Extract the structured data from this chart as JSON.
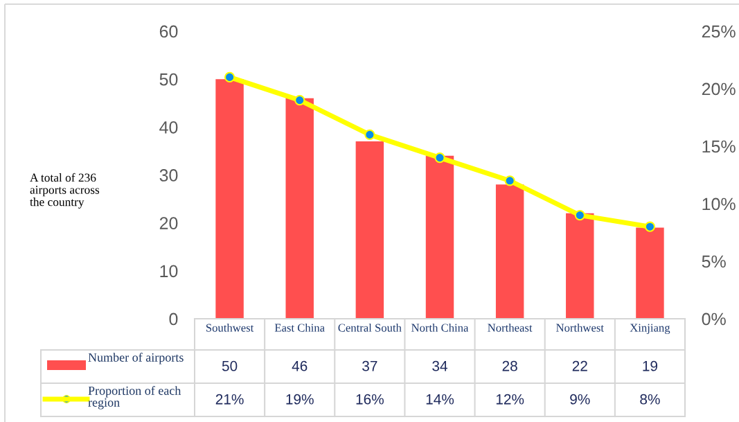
{
  "chart_data": {
    "type": "bar",
    "categories": [
      "Southwest",
      "East China",
      "Central South",
      "North China",
      "Northeast",
      "Northwest",
      "Xinjiang"
    ],
    "series": [
      {
        "name": "Number of airports",
        "color": "#ff4f4f",
        "values": [
          50,
          46,
          37,
          34,
          28,
          22,
          19
        ],
        "value_labels": [
          "50",
          "46",
          "37",
          "34",
          "28",
          "22",
          "19"
        ]
      },
      {
        "name": "Proportion of each region",
        "type": "line",
        "axis": "y2",
        "color": "#ffff00",
        "colors": [
          "#0a8ee8",
          "#0a8ee8",
          "#0a8ee8",
          "#0a8ee8",
          "#0a8ee8",
          "#0a8ee8",
          "#0a8ee8"
        ],
        "values": [
          21,
          19,
          16,
          14,
          12,
          9,
          8
        ],
        "value_labels": [
          "21%",
          "19%",
          "16%",
          "14%",
          "12%",
          "9%",
          "8%"
        ]
      }
    ],
    "ylim": [
      0,
      60
    ],
    "yticks": [
      0,
      10,
      20,
      30,
      40,
      50,
      60
    ],
    "y2lim": [
      0,
      25
    ],
    "y2ticks": [
      {
        "value": 0,
        "label": "0%"
      },
      {
        "value": 5,
        "label": "5%"
      },
      {
        "value": 10,
        "label": "10%"
      },
      {
        "value": 15,
        "label": "15%"
      },
      {
        "value": 20,
        "label": "20%"
      },
      {
        "value": 25,
        "label": "25%"
      }
    ],
    "annotations": [
      "A total of 236 airports across the country"
    ],
    "marker": "circle",
    "line_style": "solid",
    "legend": "bottom left",
    "grid": false
  }
}
